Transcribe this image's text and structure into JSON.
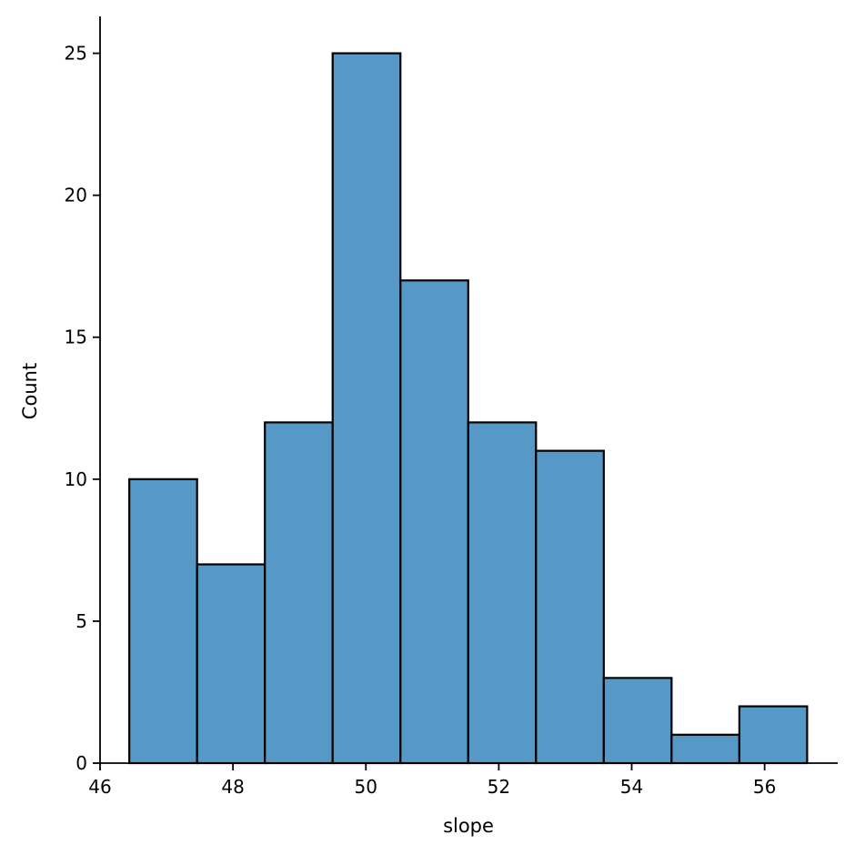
{
  "chart_data": {
    "type": "bar",
    "subtype": "histogram",
    "title": "",
    "xlabel": "slope",
    "ylabel": "Count",
    "bin_edges": [
      46.44,
      47.46,
      48.48,
      49.5,
      50.52,
      51.54,
      52.56,
      53.58,
      54.6,
      55.62,
      56.64
    ],
    "values": [
      10,
      7,
      12,
      25,
      17,
      12,
      11,
      3,
      1,
      2
    ],
    "xlim": [
      46.0,
      57.1
    ],
    "ylim": [
      0,
      26.3
    ],
    "xticks": [
      46,
      48,
      50,
      52,
      54,
      56
    ],
    "yticks": [
      0,
      5,
      10,
      15,
      20,
      25
    ],
    "grid": false,
    "legend": "none",
    "bar_color": "#5799c6",
    "edge_color": "#000000"
  }
}
